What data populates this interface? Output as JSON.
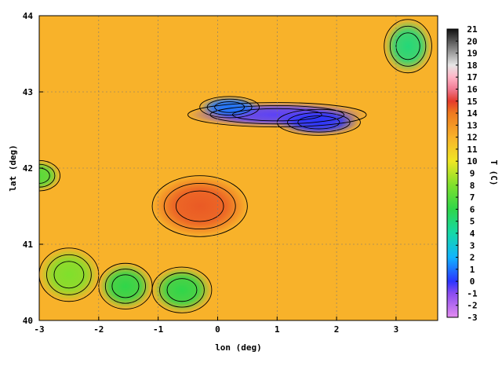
{
  "chart_data": {
    "type": "heatmap",
    "title": "",
    "xlabel": "lon (deg)",
    "ylabel": "lat (deg)",
    "colorbar_label": "T (C)",
    "xlim": [
      -3,
      3.7
    ],
    "ylim": [
      40,
      44
    ],
    "x_ticks": [
      -3,
      -2,
      -1,
      0,
      1,
      2,
      3
    ],
    "y_ticks": [
      40,
      41,
      42,
      43,
      44
    ],
    "colorbar_ticks": [
      -3,
      -2,
      -1,
      0,
      1,
      2,
      3,
      4,
      5,
      6,
      7,
      8,
      9,
      10,
      11,
      12,
      13,
      14,
      15,
      16,
      17,
      18,
      19,
      20,
      21
    ],
    "colorbar_range": [
      -3,
      21
    ],
    "grid": true,
    "contour_lines": true,
    "colormap_stops": [
      {
        "value": -3,
        "color": "#e38cf0"
      },
      {
        "value": -1,
        "color": "#8a4cf0"
      },
      {
        "value": 0,
        "color": "#2b35ff"
      },
      {
        "value": 2,
        "color": "#10b4ff"
      },
      {
        "value": 4,
        "color": "#16d9a8"
      },
      {
        "value": 6,
        "color": "#2fd64a"
      },
      {
        "value": 8,
        "color": "#7fe02c"
      },
      {
        "value": 10,
        "color": "#f0e624"
      },
      {
        "value": 12,
        "color": "#f8b22a"
      },
      {
        "value": 14,
        "color": "#ef7a1e"
      },
      {
        "value": 15,
        "color": "#e43a2c"
      },
      {
        "value": 16,
        "color": "#f07a92"
      },
      {
        "value": 17,
        "color": "#ffb4c6"
      },
      {
        "value": 18,
        "color": "#e6e6e6"
      },
      {
        "value": 21,
        "color": "#111111"
      }
    ],
    "features": [
      {
        "lon": 1.0,
        "lat": 42.7,
        "value": -0.5,
        "sx": 1.5,
        "sy": 0.16
      },
      {
        "lon": 1.7,
        "lat": 42.6,
        "value": 0,
        "sx": 0.7,
        "sy": 0.17
      },
      {
        "lon": 0.2,
        "lat": 42.8,
        "value": 1,
        "sx": 0.5,
        "sy": 0.14
      },
      {
        "lon": -1.55,
        "lat": 40.45,
        "value": 6,
        "sx": 0.45,
        "sy": 0.3
      },
      {
        "lon": -0.6,
        "lat": 40.4,
        "value": 6,
        "sx": 0.5,
        "sy": 0.3
      },
      {
        "lon": -2.5,
        "lat": 40.6,
        "value": 8,
        "sx": 0.5,
        "sy": 0.35
      },
      {
        "lon": -3.0,
        "lat": 41.9,
        "value": 7,
        "sx": 0.35,
        "sy": 0.2
      },
      {
        "lon": 3.2,
        "lat": 43.6,
        "value": 5,
        "sx": 0.4,
        "sy": 0.35
      },
      {
        "lon": -0.3,
        "lat": 41.5,
        "value": 14.5,
        "sx": 0.8,
        "sy": 0.4
      }
    ]
  }
}
